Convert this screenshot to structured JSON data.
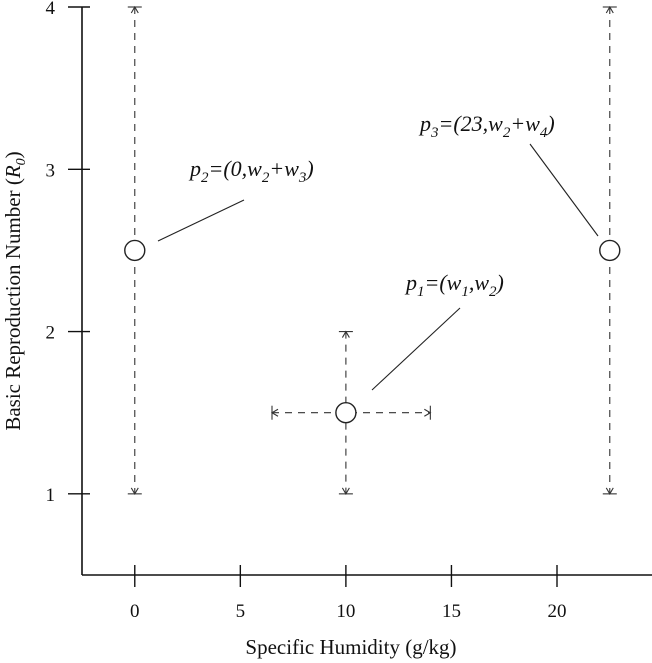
{
  "chart_data": {
    "type": "scatter",
    "title": "",
    "xlabel": "Specific Humidity (g/kg)",
    "ylabel_main": "Basic Reproduction Number (",
    "ylabel_symbol": "R",
    "ylabel_sub": "0",
    "ylabel_close": ")",
    "xlim": [
      -2.5,
      24.5
    ],
    "ylim": [
      0.5,
      4.0
    ],
    "x_ticks": [
      0,
      5,
      10,
      15,
      20
    ],
    "y_ticks": [
      1,
      2,
      3,
      4
    ],
    "grid": false,
    "points": [
      {
        "id": "p1",
        "x": 10,
        "y": 1.5,
        "y_range": [
          1.0,
          2.0
        ],
        "x_range": [
          6.5,
          14
        ],
        "label": [
          {
            "t": "p"
          },
          {
            "t": "1",
            "sub": true
          },
          {
            "t": "=(w"
          },
          {
            "t": "1",
            "sub": true
          },
          {
            "t": ",w"
          },
          {
            "t": "2",
            "sub": true
          },
          {
            "t": ")"
          }
        ]
      },
      {
        "id": "p2",
        "x": 0,
        "y": 2.5,
        "y_range": [
          1.0,
          4.0
        ],
        "label": [
          {
            "t": "p"
          },
          {
            "t": "2",
            "sub": true
          },
          {
            "t": "=(0,w"
          },
          {
            "t": "2",
            "sub": true
          },
          {
            "t": "+w"
          },
          {
            "t": "3",
            "sub": true
          },
          {
            "t": ")"
          }
        ]
      },
      {
        "id": "p3",
        "x": 22.5,
        "y": 2.5,
        "y_range": [
          1.0,
          4.0
        ],
        "label": [
          {
            "t": "p"
          },
          {
            "t": "3",
            "sub": true
          },
          {
            "t": "=(23,w"
          },
          {
            "t": "2",
            "sub": true
          },
          {
            "t": "+w"
          },
          {
            "t": "4",
            "sub": true
          },
          {
            "t": ")"
          }
        ]
      }
    ]
  }
}
